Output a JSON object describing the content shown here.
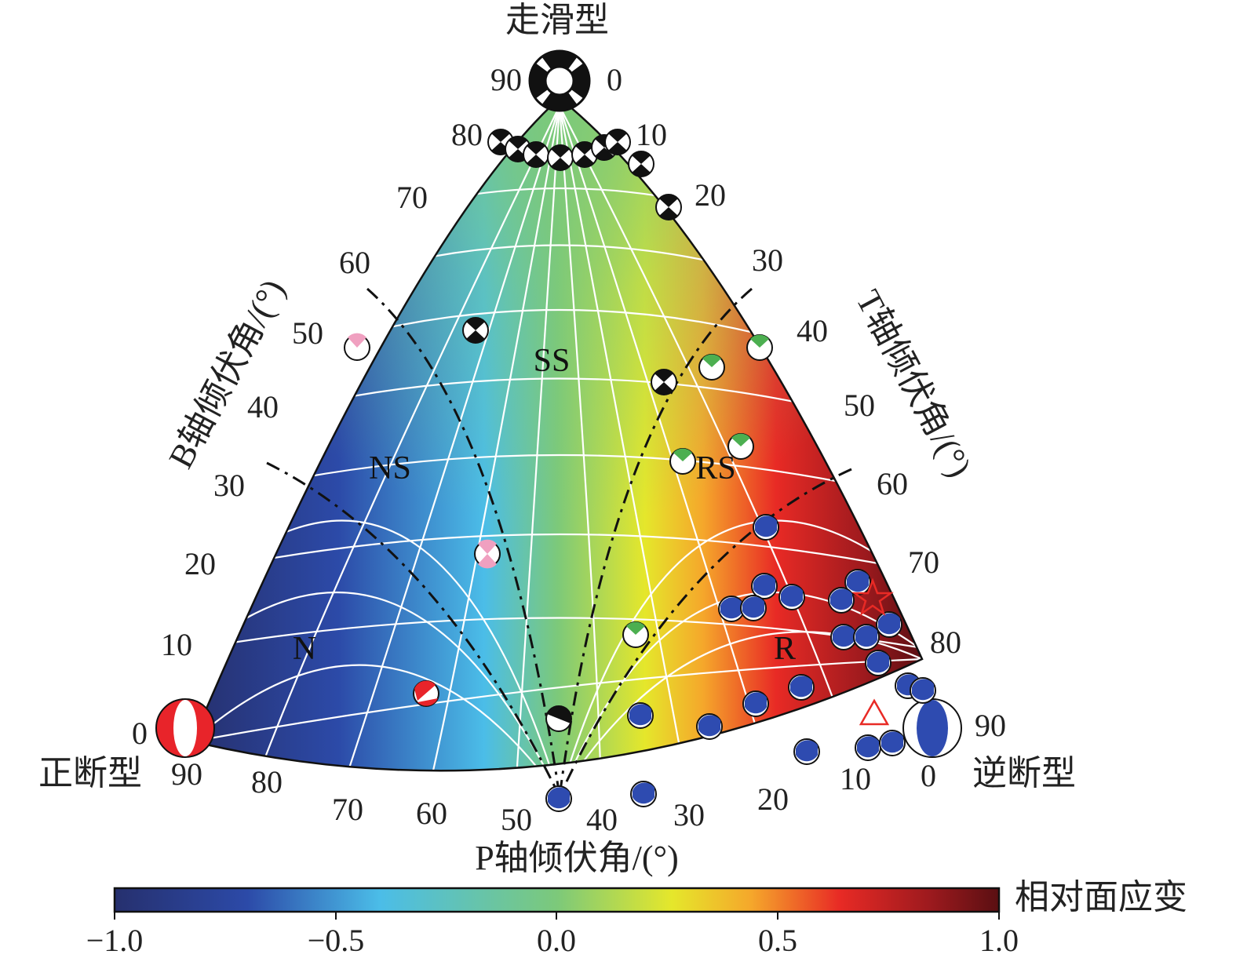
{
  "diagram": {
    "top_label": "走滑型",
    "left_label": "正断型",
    "right_label": "逆断型",
    "axis_titles": {
      "b_axis": "B轴倾伏角/(°)",
      "t_axis": "T轴倾伏角/(°)",
      "p_axis": "P轴倾伏角/(°)"
    },
    "zones": [
      "SS",
      "NS",
      "RS",
      "N",
      "R"
    ],
    "b_ticks": [
      "90",
      "80",
      "70",
      "60",
      "50",
      "40",
      "30",
      "20",
      "10",
      "0"
    ],
    "t_ticks": [
      "0",
      "10",
      "20",
      "30",
      "40",
      "50",
      "60",
      "70",
      "80",
      "90"
    ],
    "p_ticks": [
      "90",
      "80",
      "70",
      "60",
      "50",
      "40",
      "30",
      "20",
      "10",
      "0"
    ],
    "colors": {
      "normal": "#e8242a",
      "strike_slip": "#111111",
      "reverse": "#2e4bb0",
      "normal_strike": "#f0a0c0",
      "reverse_strike": "#4caf50"
    }
  },
  "colorbar": {
    "label": "相对面应变",
    "ticks": [
      "−1.0",
      "−0.5",
      "0.0",
      "0.5",
      "1.0"
    ],
    "stops": [
      "#26306e",
      "#2c4aa8",
      "#4bbde8",
      "#7cc97a",
      "#e5e72b",
      "#f5a72b",
      "#e82a25",
      "#9e1a1e",
      "#5a0f12"
    ]
  }
}
